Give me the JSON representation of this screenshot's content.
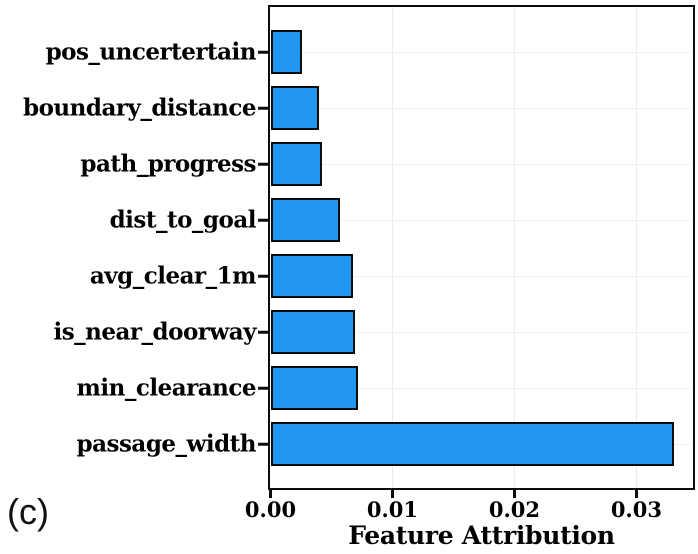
{
  "panel_label": "(c)",
  "chart_data": {
    "type": "bar",
    "orientation": "horizontal",
    "title": "",
    "xlabel": "Feature Attribution",
    "ylabel": "",
    "categories": [
      "pos_uncertertain",
      "boundary_distance",
      "path_progress",
      "dist_to_goal",
      "avg_clear_1m",
      "is_near_doorway",
      "min_clearance",
      "passage_width"
    ],
    "values": [
      0.0026,
      0.004,
      0.0042,
      0.0057,
      0.0068,
      0.0069,
      0.0072,
      0.0331
    ],
    "xlim": [
      0,
      0.0346
    ],
    "xticks": [
      0,
      0.01,
      0.02,
      0.03
    ],
    "xtick_labels": [
      "0.00",
      "0.01",
      "0.02",
      "0.03"
    ],
    "grid": true,
    "legend": "none",
    "colors": {
      "bar_fill": "#2196F3",
      "bar_edge": "#0d0d0d",
      "gridline": "#ebebeb",
      "text": "#000000"
    }
  }
}
